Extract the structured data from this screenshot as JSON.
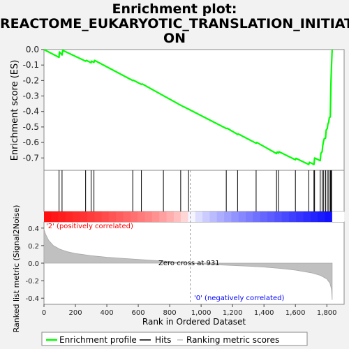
{
  "title_lines": [
    "Enrichment plot:",
    "REACTOME_EUKARYOTIC_TRANSLATION_INITIATI",
    "ON"
  ],
  "chart_data": {
    "type": "line",
    "title": "Enrichment plot: REACTOME_EUKARYOTIC_TRANSLATION_INITIATION",
    "xlabel": "Rank in Ordered Dataset",
    "xlim": [
      0,
      1910
    ],
    "x_ticks": [
      0,
      200,
      400,
      600,
      800,
      1000,
      1200,
      1400,
      1600,
      1800
    ],
    "x_tick_labels": [
      "0",
      "200",
      "400",
      "600",
      "800",
      "1,000",
      "1,200",
      "1,400",
      "1,600",
      "1,800"
    ],
    "es_panel": {
      "ylabel": "Enrichment score (ES)",
      "ylim": [
        -0.78,
        0.0
      ],
      "y_ticks": [
        0.0,
        -0.1,
        -0.2,
        -0.3,
        -0.4,
        -0.5,
        -0.6,
        -0.7
      ],
      "y_tick_labels": [
        "0.0",
        "-0.1",
        "-0.2",
        "-0.3",
        "-0.4",
        "-0.5",
        "-0.6",
        "-0.7"
      ],
      "series": [
        {
          "name": "Enrichment profile",
          "color": "#00ff00",
          "points": [
            [
              0,
              0.0
            ],
            [
              96,
              -0.05
            ],
            [
              98,
              -0.015
            ],
            [
              115,
              -0.035
            ],
            [
              119,
              -0.005
            ],
            [
              265,
              -0.075
            ],
            [
              270,
              -0.07
            ],
            [
              300,
              -0.085
            ],
            [
              302,
              -0.075
            ],
            [
              318,
              -0.083
            ],
            [
              322,
              -0.07
            ],
            [
              565,
              -0.2
            ],
            [
              568,
              -0.198
            ],
            [
              620,
              -0.225
            ],
            [
              625,
              -0.222
            ],
            [
              760,
              -0.298
            ],
            [
              870,
              -0.36
            ],
            [
              920,
              -0.385
            ],
            [
              1160,
              -0.51
            ],
            [
              1165,
              -0.508
            ],
            [
              1232,
              -0.548
            ],
            [
              1236,
              -0.545
            ],
            [
              1350,
              -0.605
            ],
            [
              1354,
              -0.6
            ],
            [
              1480,
              -0.672
            ],
            [
              1484,
              -0.662
            ],
            [
              1492,
              -0.668
            ],
            [
              1496,
              -0.66
            ],
            [
              1600,
              -0.712
            ],
            [
              1604,
              -0.703
            ],
            [
              1685,
              -0.742
            ],
            [
              1690,
              -0.728
            ],
            [
              1718,
              -0.742
            ],
            [
              1722,
              -0.7
            ],
            [
              1758,
              -0.718
            ],
            [
              1762,
              -0.67
            ],
            [
              1770,
              -0.66
            ],
            [
              1774,
              -0.62
            ],
            [
              1780,
              -0.59
            ],
            [
              1784,
              -0.575
            ],
            [
              1792,
              -0.572
            ],
            [
              1796,
              -0.52
            ],
            [
              1803,
              -0.51
            ],
            [
              1807,
              -0.48
            ],
            [
              1812,
              -0.47
            ],
            [
              1816,
              -0.44
            ],
            [
              1822,
              -0.435
            ],
            [
              1826,
              -0.22
            ],
            [
              1830,
              -0.1
            ],
            [
              1834,
              0.0
            ]
          ]
        }
      ]
    },
    "hits": {
      "name": "Hits",
      "color": "#000000",
      "x": [
        96,
        115,
        265,
        300,
        318,
        565,
        620,
        760,
        870,
        920,
        1160,
        1232,
        1350,
        1480,
        1492,
        1600,
        1685,
        1718,
        1722,
        1758,
        1770,
        1780,
        1792,
        1803,
        1812,
        1822,
        1826,
        1830
      ]
    },
    "heatmap_bar": {
      "label_positive": "'2' (positively correlated)",
      "label_negative": "'0' (negatively correlated)",
      "positive_color": "#ff0000",
      "negative_color": "#0000ff"
    },
    "metric_panel": {
      "ylabel": "Ranked list metric (Signal2Noise)",
      "ylim": [
        -0.47,
        0.47
      ],
      "y_ticks": [
        0.4,
        0.2,
        0.0,
        -0.2,
        -0.4
      ],
      "y_tick_labels": [
        "0.4",
        "0.2",
        "0.0",
        "-0.2",
        "-0.4"
      ],
      "series": [
        {
          "name": "Ranking metric scores",
          "color": "#c0c0c0",
          "points": [
            [
              0,
              0.39
            ],
            [
              10,
              0.33
            ],
            [
              30,
              0.26
            ],
            [
              60,
              0.2
            ],
            [
              100,
              0.16
            ],
            [
              150,
              0.13
            ],
            [
              200,
              0.11
            ],
            [
              300,
              0.085
            ],
            [
              400,
              0.068
            ],
            [
              500,
              0.055
            ],
            [
              600,
              0.042
            ],
            [
              700,
              0.03
            ],
            [
              800,
              0.018
            ],
            [
              900,
              0.005
            ],
            [
              931,
              0.0
            ],
            [
              1000,
              -0.008
            ],
            [
              1100,
              -0.018
            ],
            [
              1200,
              -0.026
            ],
            [
              1300,
              -0.035
            ],
            [
              1400,
              -0.045
            ],
            [
              1500,
              -0.06
            ],
            [
              1600,
              -0.08
            ],
            [
              1700,
              -0.11
            ],
            [
              1760,
              -0.14
            ],
            [
              1800,
              -0.18
            ],
            [
              1820,
              -0.23
            ],
            [
              1830,
              -0.3
            ],
            [
              1834,
              -0.42
            ]
          ]
        }
      ],
      "annotation": "Zero cross at 931"
    },
    "legend": {
      "position": "bottom",
      "entries": [
        {
          "label": "Enrichment profile",
          "color": "#00ff00"
        },
        {
          "label": "Hits",
          "color": "#000000"
        },
        {
          "label": "Ranking metric scores",
          "color": "#c0c0c0"
        }
      ]
    }
  }
}
